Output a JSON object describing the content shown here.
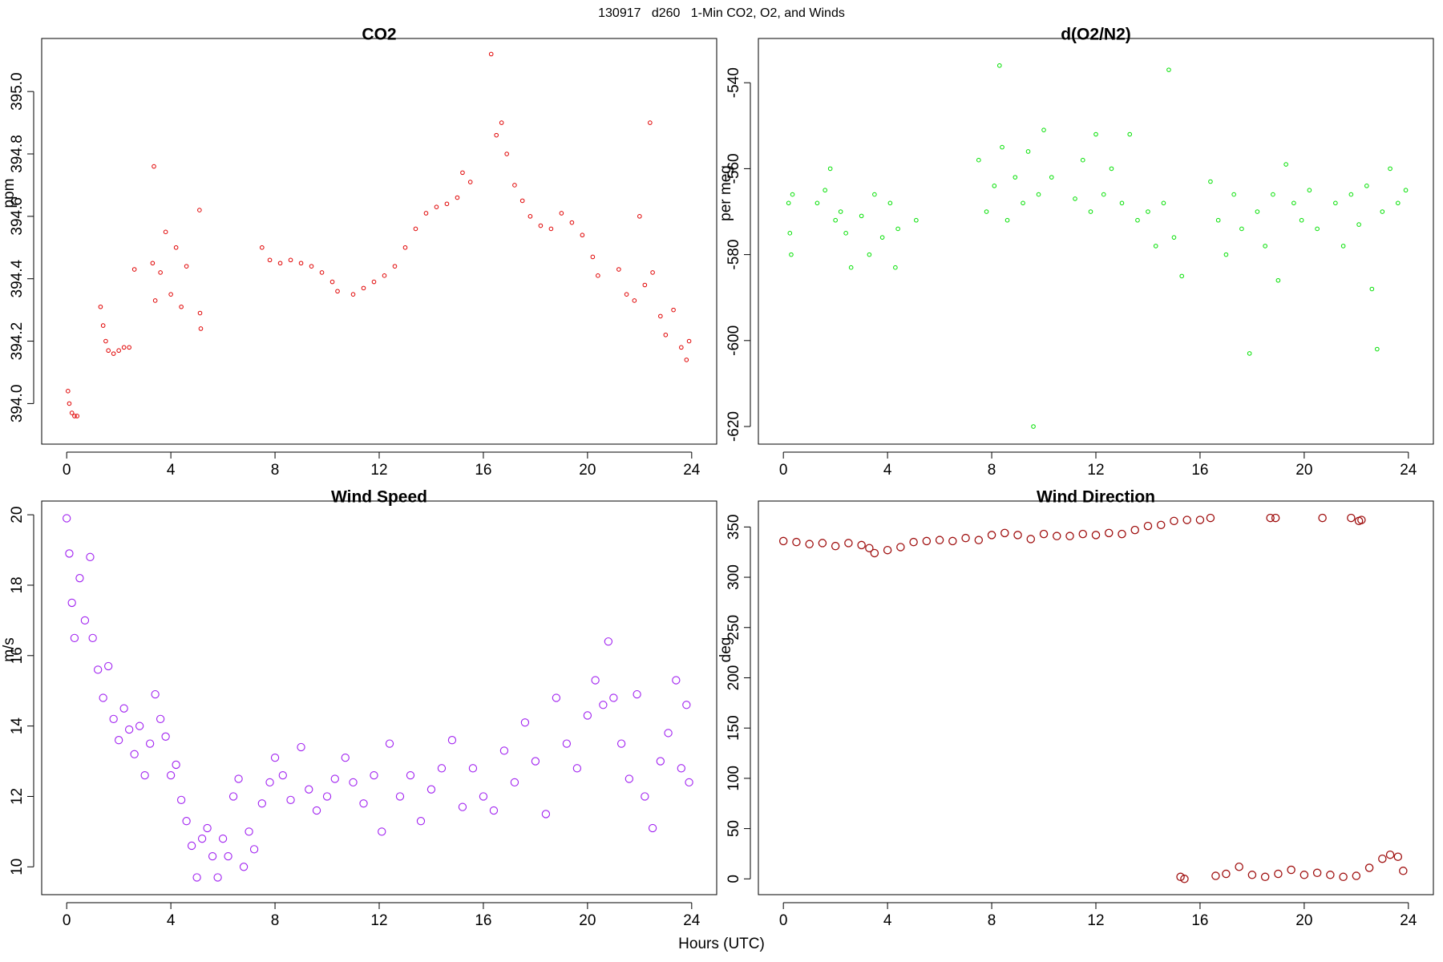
{
  "title": "130917   d260   1-Min CO2, O2, and Winds",
  "xlabel": "Hours (UTC)",
  "chart_data": [
    {
      "type": "scatter",
      "title": "CO2",
      "ylabel": "ppm",
      "color": "#e00000",
      "x": [
        0.05,
        0.1,
        0.2,
        0.3,
        0.4,
        1.3,
        1.4,
        1.5,
        1.6,
        1.8,
        2.0,
        2.2,
        2.4,
        2.6,
        3.3,
        3.35,
        3.4,
        3.6,
        3.8,
        4.0,
        4.2,
        4.4,
        4.6,
        5.1,
        5.12,
        5.15,
        7.5,
        7.8,
        8.2,
        8.6,
        9.0,
        9.4,
        9.8,
        10.2,
        10.4,
        11.0,
        11.4,
        11.8,
        12.2,
        12.6,
        13.0,
        13.4,
        13.8,
        14.2,
        14.6,
        15.0,
        15.2,
        15.5,
        16.3,
        16.5,
        16.7,
        16.9,
        17.2,
        17.5,
        17.8,
        18.2,
        18.6,
        19.0,
        19.4,
        19.8,
        20.2,
        20.4,
        21.2,
        21.5,
        21.8,
        22.0,
        22.2,
        22.4,
        22.5,
        22.8,
        23.0,
        23.3,
        23.6,
        23.8,
        23.9
      ],
      "values": [
        394.04,
        394.0,
        393.97,
        393.96,
        393.96,
        394.31,
        394.25,
        394.2,
        394.17,
        394.16,
        394.17,
        394.18,
        394.18,
        394.43,
        394.45,
        394.76,
        394.33,
        394.42,
        394.55,
        394.35,
        394.5,
        394.31,
        394.44,
        394.62,
        394.29,
        394.24,
        394.5,
        394.46,
        394.45,
        394.46,
        394.45,
        394.44,
        394.42,
        394.39,
        394.36,
        394.35,
        394.37,
        394.39,
        394.41,
        394.44,
        394.5,
        394.56,
        394.61,
        394.63,
        394.64,
        394.66,
        394.74,
        394.71,
        395.12,
        394.86,
        394.9,
        394.8,
        394.7,
        394.65,
        394.6,
        394.57,
        394.56,
        394.61,
        394.58,
        394.54,
        394.47,
        394.41,
        394.43,
        394.35,
        394.33,
        394.6,
        394.38,
        394.9,
        394.42,
        394.28,
        394.22,
        394.3,
        394.18,
        394.14,
        394.2
      ],
      "xlim": [
        -0.96,
        24.96
      ],
      "xticks": [
        0,
        4,
        8,
        12,
        16,
        20,
        24
      ],
      "ylim": [
        393.87,
        395.17
      ],
      "yticks": [
        {
          "value": 394,
          "label": "394.0"
        },
        394.2,
        394.4,
        394.6,
        394.8,
        {
          "value": 395,
          "label": "395.0"
        }
      ]
    },
    {
      "type": "scatter",
      "title": "d(O2/N2)",
      "ylabel": "per meg",
      "color": "#00e000",
      "x": [
        0.2,
        0.25,
        0.3,
        0.35,
        1.3,
        1.6,
        1.8,
        2.0,
        2.2,
        2.4,
        2.6,
        3.0,
        3.3,
        3.5,
        3.8,
        4.1,
        4.3,
        4.4,
        5.1,
        7.5,
        7.8,
        8.1,
        8.3,
        8.4,
        8.6,
        8.9,
        9.2,
        9.4,
        9.6,
        9.8,
        10.0,
        10.3,
        11.2,
        11.5,
        11.8,
        12.0,
        12.3,
        12.6,
        13.0,
        13.3,
        13.6,
        14.0,
        14.3,
        14.6,
        14.8,
        15.0,
        15.3,
        16.4,
        16.7,
        17.0,
        17.3,
        17.6,
        17.9,
        18.2,
        18.5,
        18.8,
        19.0,
        19.3,
        19.6,
        19.9,
        20.2,
        20.5,
        21.2,
        21.5,
        21.8,
        22.1,
        22.4,
        22.6,
        22.8,
        23.0,
        23.3,
        23.6,
        23.9
      ],
      "values": [
        -568,
        -575,
        -580,
        -566,
        -568,
        -565,
        -560,
        -572,
        -570,
        -575,
        -583,
        -571,
        -580,
        -566,
        -576,
        -568,
        -583,
        -574,
        -572,
        -558,
        -570,
        -564,
        -536,
        -555,
        -572,
        -562,
        -568,
        -556,
        -620,
        -566,
        -551,
        -562,
        -567,
        -558,
        -570,
        -552,
        -566,
        -560,
        -568,
        -552,
        -572,
        -570,
        -578,
        -568,
        -537,
        -576,
        -585,
        -563,
        -572,
        -580,
        -566,
        -574,
        -603,
        -570,
        -578,
        -566,
        -586,
        -559,
        -568,
        -572,
        -565,
        -574,
        -568,
        -578,
        -566,
        -573,
        -564,
        -588,
        -602,
        -570,
        -560,
        -568,
        -565
      ],
      "xlim": [
        -0.96,
        24.96
      ],
      "xticks": [
        0,
        4,
        8,
        12,
        16,
        20,
        24
      ],
      "ylim": [
        -624.1,
        -529.7
      ],
      "yticks": [
        -620,
        -600,
        -580,
        -560,
        -540
      ]
    },
    {
      "type": "scatter",
      "title": "Wind Speed",
      "ylabel": "m/s",
      "color": "#a020f0",
      "x": [
        0,
        0.1,
        0.2,
        0.3,
        0.5,
        0.7,
        0.9,
        1.0,
        1.2,
        1.4,
        1.6,
        1.8,
        2.0,
        2.2,
        2.4,
        2.6,
        2.8,
        3.0,
        3.2,
        3.4,
        3.6,
        3.8,
        4.0,
        4.2,
        4.4,
        4.6,
        4.8,
        5.0,
        5.2,
        5.4,
        5.6,
        5.8,
        6.0,
        6.2,
        6.4,
        6.6,
        6.8,
        7.0,
        7.2,
        7.5,
        7.8,
        8.0,
        8.3,
        8.6,
        9.0,
        9.3,
        9.6,
        10.0,
        10.3,
        10.7,
        11.0,
        11.4,
        11.8,
        12.1,
        12.4,
        12.8,
        13.2,
        13.6,
        14.0,
        14.4,
        14.8,
        15.2,
        15.6,
        16.0,
        16.4,
        16.8,
        17.2,
        17.6,
        18.0,
        18.4,
        18.8,
        19.2,
        19.6,
        20.0,
        20.3,
        20.6,
        20.8,
        21.0,
        21.3,
        21.6,
        21.9,
        22.2,
        22.5,
        22.8,
        23.1,
        23.4,
        23.6,
        23.8,
        23.9
      ],
      "values": [
        19.9,
        18.9,
        17.5,
        16.5,
        18.2,
        17.0,
        18.8,
        16.5,
        15.6,
        14.8,
        15.7,
        14.2,
        13.6,
        14.5,
        13.9,
        13.2,
        14.0,
        12.6,
        13.5,
        14.9,
        14.2,
        13.7,
        12.6,
        12.9,
        11.9,
        11.3,
        10.6,
        9.7,
        10.8,
        11.1,
        10.3,
        9.7,
        10.8,
        10.3,
        12.0,
        12.5,
        10.0,
        11.0,
        10.5,
        11.8,
        12.4,
        13.1,
        12.6,
        11.9,
        13.4,
        12.2,
        11.6,
        12.0,
        12.5,
        13.1,
        12.4,
        11.8,
        12.6,
        11.0,
        13.5,
        12.0,
        12.6,
        11.3,
        12.2,
        12.8,
        13.6,
        11.7,
        12.8,
        12.0,
        11.6,
        13.3,
        12.4,
        14.1,
        13.0,
        11.5,
        14.8,
        13.5,
        12.8,
        14.3,
        15.3,
        14.6,
        16.4,
        14.8,
        13.5,
        12.5,
        14.9,
        12.0,
        11.1,
        13.0,
        13.8,
        15.3,
        12.8,
        14.6,
        12.4
      ],
      "xlim": [
        -0.96,
        24.96
      ],
      "xticks": [
        0,
        4,
        8,
        12,
        16,
        20,
        24
      ],
      "ylim": [
        9.21,
        20.39
      ],
      "yticks": [
        10,
        12,
        14,
        16,
        18,
        20
      ]
    },
    {
      "type": "scatter",
      "title": "Wind Direction",
      "ylabel": "deg",
      "color": "#a01010",
      "x": [
        0,
        0.5,
        1.0,
        1.5,
        2.0,
        2.5,
        3.0,
        3.3,
        3.5,
        4.0,
        4.5,
        5.0,
        5.5,
        6.0,
        6.5,
        7.0,
        7.5,
        8.0,
        8.5,
        9.0,
        9.5,
        10.0,
        10.5,
        11.0,
        11.5,
        12.0,
        12.5,
        13.0,
        13.5,
        14.0,
        14.5,
        15.0,
        15.25,
        15.4,
        15.5,
        16.0,
        16.4,
        16.6,
        17.0,
        17.5,
        18.0,
        18.5,
        18.7,
        18.9,
        19.0,
        19.5,
        20.0,
        20.5,
        20.7,
        21.0,
        21.5,
        21.8,
        22.0,
        22.1,
        22.2,
        22.5,
        23.0,
        23.3,
        23.6,
        23.8
      ],
      "values": [
        336,
        335,
        333,
        334,
        331,
        334,
        332,
        329,
        324,
        327,
        330,
        335,
        336,
        337,
        336,
        339,
        337,
        342,
        344,
        342,
        338,
        343,
        341,
        341,
        343,
        342,
        344,
        343,
        347,
        351,
        352,
        356,
        2,
        0,
        357,
        357,
        359,
        3,
        5,
        12,
        4,
        2,
        359,
        359,
        5,
        9,
        4,
        6,
        359,
        4,
        2,
        359,
        3,
        356,
        357,
        11,
        20,
        24,
        22,
        8
      ],
      "xlim": [
        -0.96,
        24.96
      ],
      "xticks": [
        0,
        4,
        8,
        12,
        16,
        20,
        24
      ],
      "ylim": [
        -15.7,
        375.8
      ],
      "yticks": [
        0,
        50,
        100,
        150,
        200,
        250,
        300,
        350
      ]
    }
  ]
}
